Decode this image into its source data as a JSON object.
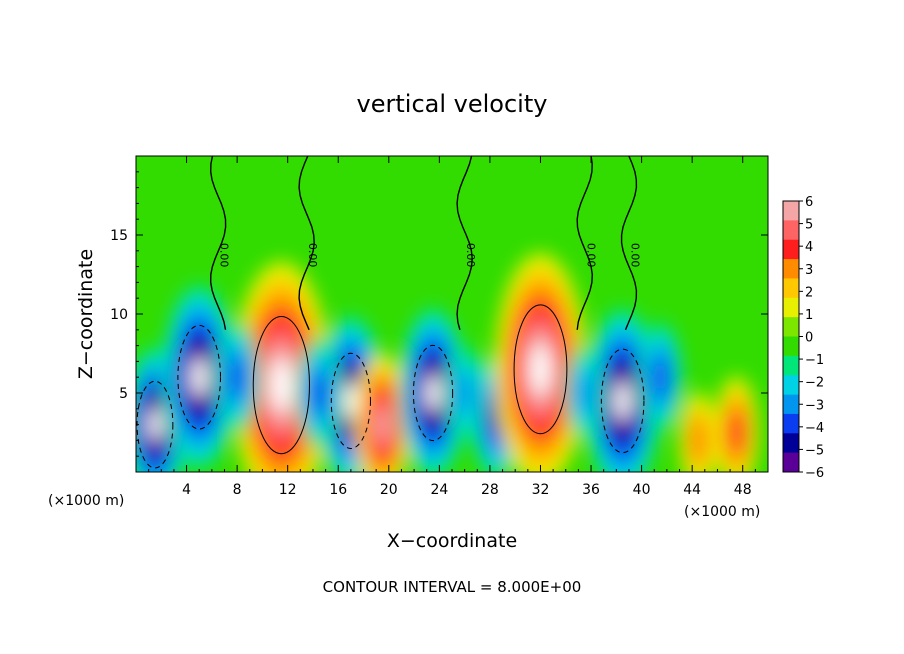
{
  "chart_data": {
    "type": "heatmap",
    "title": "vertical velocity",
    "xlabel": "X−coordinate",
    "ylabel": "Z−coordinate",
    "x_unit_left": "(×1000 m)",
    "x_unit_right": "(×1000 m)",
    "note": "CONTOUR INTERVAL = 8.000E+00",
    "xlim": [
      0,
      50
    ],
    "ylim": [
      0,
      20
    ],
    "x_ticks": [
      4,
      8,
      12,
      16,
      20,
      24,
      28,
      32,
      36,
      40,
      44,
      48
    ],
    "y_ticks": [
      5,
      10,
      15
    ],
    "contour_label": "0.00",
    "colorbar": {
      "ticks": [
        6,
        5,
        4,
        3,
        2,
        1,
        0,
        -1,
        -2,
        -3,
        -4,
        -5,
        -6
      ],
      "labels": [
        "6",
        "5",
        "4",
        "3",
        "2",
        "1",
        "0",
        "−1",
        "−2",
        "−3",
        "−4",
        "−5",
        "−6"
      ],
      "colors": [
        "#f4a6a6",
        "#ff6464",
        "#ff1e1e",
        "#ff8c00",
        "#ffc800",
        "#e6f000",
        "#7de600",
        "#32dc00",
        "#00e678",
        "#00d2e6",
        "#0096f0",
        "#0a3cf0",
        "#000098",
        "#5a0098"
      ]
    },
    "features": [
      {
        "x": 1.5,
        "z": 3.0,
        "w": -7
      },
      {
        "x": 5.0,
        "z": 6.0,
        "w": -9
      },
      {
        "x": 11.5,
        "z": 5.5,
        "w": 13
      },
      {
        "x": 17.0,
        "z": 4.5,
        "w": -8
      },
      {
        "x": 19.5,
        "z": 3.0,
        "w": 6
      },
      {
        "x": 23.5,
        "z": 5.0,
        "w": -8
      },
      {
        "x": 28.5,
        "z": 3.5,
        "w": -5
      },
      {
        "x": 32.0,
        "z": 6.5,
        "w": 12
      },
      {
        "x": 38.5,
        "z": 4.5,
        "w": -9
      },
      {
        "x": 44.5,
        "z": 2.0,
        "w": 3
      },
      {
        "x": 47.5,
        "z": 2.5,
        "w": 4
      },
      {
        "x": 8.0,
        "z": 6.0,
        "w": -4
      },
      {
        "x": 14.5,
        "z": 5.0,
        "w": -4
      },
      {
        "x": 26.0,
        "z": 5.0,
        "w": -3
      },
      {
        "x": 35.5,
        "z": 5.0,
        "w": -3
      },
      {
        "x": 41.5,
        "z": 6.0,
        "w": -4
      }
    ]
  }
}
